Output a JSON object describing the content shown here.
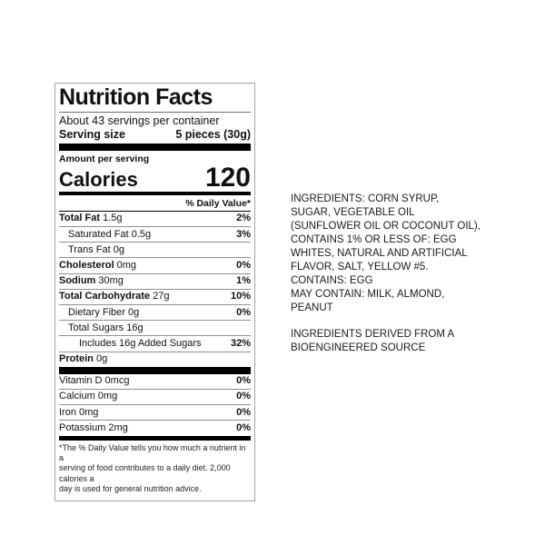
{
  "label": {
    "title": "Nutrition Facts",
    "servings_per_container": "About 43 servings per container",
    "serving_size_label": "Serving size",
    "serving_size_value": "5 pieces (30g)",
    "amount_per_serving": "Amount per serving",
    "calories_label": "Calories",
    "calories_value": "120",
    "daily_value_header": "% Daily Value*",
    "rows": [
      {
        "name": "Total Fat",
        "amount": "1.5g",
        "pct": "2%"
      },
      {
        "name": "Saturated Fat",
        "amount": "0.5g",
        "pct": "3%"
      },
      {
        "name": "Trans Fat",
        "amount": "0g",
        "pct": ""
      },
      {
        "name": "Cholesterol",
        "amount": "0mg",
        "pct": "0%"
      },
      {
        "name": "Sodium",
        "amount": "30mg",
        "pct": "1%"
      },
      {
        "name": "Total Carbohydrate",
        "amount": "27g",
        "pct": "10%"
      },
      {
        "name": "Dietary Fiber",
        "amount": "0g",
        "pct": "0%"
      },
      {
        "name": "Total Sugars",
        "amount": "16g",
        "pct": ""
      },
      {
        "name": "Includes 16g Added Sugars",
        "amount": "",
        "pct": "32%"
      },
      {
        "name": "Protein",
        "amount": "0g",
        "pct": ""
      }
    ],
    "vitamins": [
      {
        "name": "Vitamin D",
        "amount": "0mcg",
        "pct": "0%"
      },
      {
        "name": "Calcium",
        "amount": "0mg",
        "pct": "0%"
      },
      {
        "name": "Iron",
        "amount": "0mg",
        "pct": "0%"
      },
      {
        "name": "Potassium",
        "amount": "2mg",
        "pct": "0%"
      }
    ],
    "footnote": "*The % Daily Value tells you how much a nutrient in a\nserving of food contributes to a daily diet. 2,000 calories a\nday is used for general nutrition advice.",
    "colors": {
      "bar": "#000000",
      "hairline": "#8f8f8f",
      "border": "#a3a3a3"
    }
  },
  "ingredients": {
    "main": "INGREDIENTS: CORN SYRUP,\nSUGAR, VEGETABLE OIL\n(SUNFLOWER OIL OR COCONUT OIL),\nCONTAINS 1% OR LESS OF: EGG\nWHITES, NATURAL AND ARTIFICIAL\nFLAVOR, SALT, YELLOW #5.\nCONTAINS: EGG\nMAY CONTAIN: MILK, ALMOND,\nPEANUT",
    "bioengineered": "INGREDIENTS DERIVED FROM A\nBIOENGINEERED SOURCE"
  }
}
